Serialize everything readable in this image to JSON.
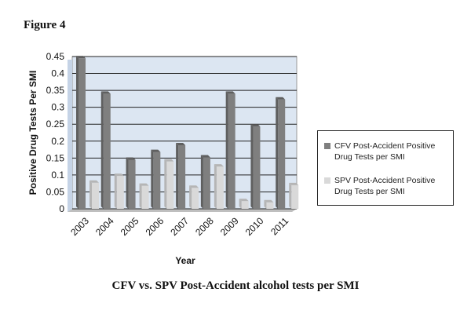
{
  "figure_label": "Figure 4",
  "caption": "CFV vs. SPV Post-Accident alcohol tests per SMI",
  "colors": {
    "plot_background": "#dce6f2",
    "grid": "#222222",
    "series_cfv": "#7f7f7f",
    "series_spv": "#d9d9d9"
  },
  "chart_data": {
    "type": "bar",
    "title": "",
    "xlabel": "Year",
    "ylabel": "Positive Drug Tests Per SMI",
    "ylim": [
      0,
      0.45
    ],
    "yticks": [
      "0",
      "0.05",
      "0.1",
      "0.15",
      "0.2",
      "0.25",
      "0.3",
      "0.35",
      "0.4",
      "0.45"
    ],
    "grid": true,
    "legend_position": "right",
    "categories": [
      "2003",
      "2004",
      "2005",
      "2006",
      "2007",
      "2008",
      "2009",
      "2010",
      "2011"
    ],
    "series": [
      {
        "name": "CFV Post-Accident Positive Drug Tests per SMI",
        "values": [
          0.445,
          0.34,
          0.145,
          0.168,
          0.188,
          0.152,
          0.34,
          0.243,
          0.323
        ]
      },
      {
        "name": "SPV Post-Accident Positive Drug Tests per SMI",
        "values": [
          0.077,
          0.097,
          0.068,
          0.14,
          0.062,
          0.125,
          0.023,
          0.019,
          0.07
        ]
      }
    ]
  }
}
